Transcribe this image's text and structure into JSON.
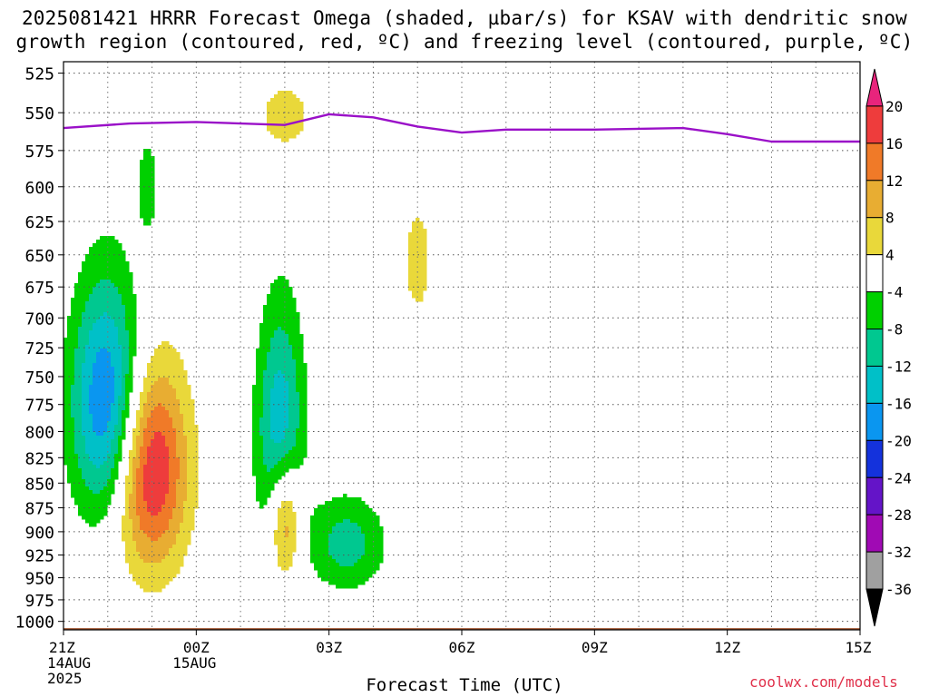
{
  "title_line1": "2025081421 HRRR Forecast Omega (shaded, µbar/s) for KSAV with dendritic snow",
  "title_line2": "growth region (contoured, red, ºC) and freezing level (contoured, purple, ºC)",
  "credit": "coolwx.com/models",
  "chart_data": {
    "type": "heatmap",
    "title": "2025081421 HRRR Forecast Omega (shaded, µbar/s) for KSAV with dendritic snow growth region (contoured, red, ºC) and freezing level (contoured, purple, ºC)",
    "xlabel": "Forecast Time (UTC)",
    "ylabel": "",
    "x_ticks": [
      {
        "hour": 0,
        "label": "21Z",
        "sub1": "14AUG",
        "sub2": "2025"
      },
      {
        "hour": 3,
        "label": "00Z",
        "sub1": "15AUG",
        "sub2": ""
      },
      {
        "hour": 6,
        "label": "03Z",
        "sub1": "",
        "sub2": ""
      },
      {
        "hour": 9,
        "label": "06Z",
        "sub1": "",
        "sub2": ""
      },
      {
        "hour": 12,
        "label": "09Z",
        "sub1": "",
        "sub2": ""
      },
      {
        "hour": 15,
        "label": "12Z",
        "sub1": "",
        "sub2": ""
      },
      {
        "hour": 18,
        "label": "15Z",
        "sub1": "",
        "sub2": ""
      }
    ],
    "x_range_hours": [
      0,
      18
    ],
    "y_ticks": [
      525,
      550,
      575,
      600,
      625,
      650,
      675,
      700,
      725,
      750,
      775,
      800,
      825,
      850,
      875,
      900,
      925,
      950,
      975,
      1000
    ],
    "y_range_hPa": [
      518,
      1010
    ],
    "y_scale": "log-pressure",
    "grid": true,
    "colorbar": {
      "labels": [
        "20",
        "16",
        "12",
        "8",
        "4",
        "-4",
        "-8",
        "-12",
        "-16",
        "-20",
        "-24",
        "-28",
        "-32",
        "-36"
      ],
      "bins": [
        {
          "min": 20,
          "color": "#e8247c"
        },
        {
          "min": 16,
          "max": 20,
          "color": "#ee3c3c"
        },
        {
          "min": 12,
          "max": 16,
          "color": "#f07a28"
        },
        {
          "min": 8,
          "max": 12,
          "color": "#e8ad32"
        },
        {
          "min": 4,
          "max": 8,
          "color": "#e9d83a"
        },
        {
          "min": -4,
          "max": 4,
          "color": "#ffffff"
        },
        {
          "min": -8,
          "max": -4,
          "color": "#00d000"
        },
        {
          "min": -12,
          "max": -8,
          "color": "#00c890"
        },
        {
          "min": -16,
          "max": -12,
          "color": "#00c0c8"
        },
        {
          "min": -20,
          "max": -16,
          "color": "#0a96f0"
        },
        {
          "min": -24,
          "max": -20,
          "color": "#1432dc"
        },
        {
          "min": -28,
          "max": -24,
          "color": "#6414c8"
        },
        {
          "min": -32,
          "max": -28,
          "color": "#a00ab4"
        },
        {
          "min": -36,
          "max": -32,
          "color": "#a0a0a0"
        },
        {
          "max": -36,
          "color": "#000000"
        }
      ]
    },
    "freezing_level_hPa": [
      {
        "hour": 0,
        "p": 560
      },
      {
        "hour": 1.5,
        "p": 557
      },
      {
        "hour": 3,
        "p": 556
      },
      {
        "hour": 5,
        "p": 558
      },
      {
        "hour": 6,
        "p": 551
      },
      {
        "hour": 7,
        "p": 553
      },
      {
        "hour": 8,
        "p": 559
      },
      {
        "hour": 9,
        "p": 563
      },
      {
        "hour": 10,
        "p": 561
      },
      {
        "hour": 12,
        "p": 561
      },
      {
        "hour": 14,
        "p": 560
      },
      {
        "hour": 15,
        "p": 564
      },
      {
        "hour": 16,
        "p": 569
      },
      {
        "hour": 18,
        "p": 569
      }
    ],
    "omega_features": [
      {
        "name": "upward core 21-03Z",
        "hour": 1.95,
        "hour_halfwidth": 1.25,
        "p_top": 682,
        "p_bot": 987,
        "peak": 22
      },
      {
        "name": "upward core 06Z",
        "hour": 5.0,
        "hour_halfwidth": 0.55,
        "p_top": 790,
        "p_bot": 985,
        "peak": 18
      },
      {
        "name": "upper ascent 06Z",
        "hour": 5.0,
        "hour_halfwidth": 0.9,
        "p_top": 520,
        "p_bot": 585,
        "peak": 7
      },
      {
        "name": "rising 08Z",
        "hour": 8.0,
        "hour_halfwidth": 0.55,
        "p_top": 580,
        "p_bot": 730,
        "peak": 6
      },
      {
        "name": "sinking 23Z",
        "hour": 1.0,
        "hour_halfwidth": 1.2,
        "p_top": 615,
        "p_bot": 935,
        "peak": -22
      },
      {
        "name": "sinking 04Z",
        "hour": 4.9,
        "hour_halfwidth": 0.8,
        "p_top": 630,
        "p_bot": 985,
        "peak": -16
      },
      {
        "name": "sinking 02Z",
        "hour": 6.4,
        "hour_halfwidth": 1.3,
        "p_top": 835,
        "p_bot": 990,
        "peak": -10
      },
      {
        "name": "sinking 01Z",
        "hour": 1.9,
        "hour_halfwidth": 0.35,
        "p_top": 548,
        "p_bot": 650,
        "peak": -7
      }
    ],
    "terrain_bottom_hPa": 1008
  },
  "credit_color": "#e0304a"
}
